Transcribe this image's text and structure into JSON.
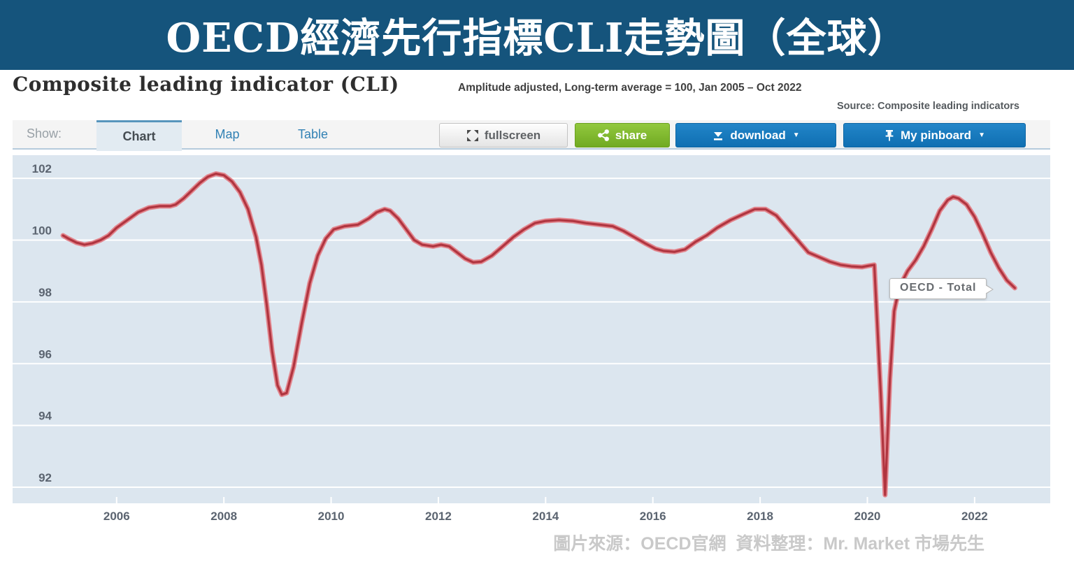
{
  "banner": {
    "title": "OECD經濟先行指標CLI走勢圖（全球）",
    "bg_color": "#15547c"
  },
  "header": {
    "title": "Composite leading indicator (CLI)",
    "subtitle": "Amplitude adjusted, Long-term average = 100, Jan 2005 – Oct 2022",
    "source": "Source: Composite leading indicators"
  },
  "toolbar": {
    "show_label": "Show:",
    "tabs": [
      {
        "label": "Chart",
        "active": true
      },
      {
        "label": "Map",
        "active": false
      },
      {
        "label": "Table",
        "active": false
      }
    ],
    "fullscreen_label": "fullscreen",
    "share_label": "share",
    "download_label": "download",
    "pinboard_label": "My pinboard",
    "share_color": "#76b52a",
    "action_color": "#1478bc"
  },
  "chart_data": {
    "type": "line",
    "title": "Composite leading indicator (CLI)",
    "xlabel": "",
    "ylabel": "",
    "x_ticks": [
      2006,
      2008,
      2010,
      2012,
      2014,
      2016,
      2018,
      2020,
      2022
    ],
    "y_ticks": [
      92,
      94,
      96,
      98,
      100,
      102
    ],
    "xlim": [
      2004.06,
      2023.41
    ],
    "ylim": [
      91.48,
      102.75
    ],
    "grid": "on",
    "plot_bg": "#dce6ef",
    "grid_color": "#ffffff",
    "axis_label_color": "#5b6470",
    "tooltip_label": "OECD - Total",
    "series": [
      {
        "name": "OECD - Total",
        "color": "#b03540",
        "halo_color": "#e2858d",
        "points": [
          [
            2005.0,
            100.15
          ],
          [
            2005.1,
            100.05
          ],
          [
            2005.25,
            99.92
          ],
          [
            2005.4,
            99.85
          ],
          [
            2005.55,
            99.9
          ],
          [
            2005.7,
            100.0
          ],
          [
            2005.85,
            100.15
          ],
          [
            2006.0,
            100.4
          ],
          [
            2006.2,
            100.65
          ],
          [
            2006.4,
            100.9
          ],
          [
            2006.6,
            101.05
          ],
          [
            2006.8,
            101.1
          ],
          [
            2007.0,
            101.1
          ],
          [
            2007.1,
            101.15
          ],
          [
            2007.25,
            101.35
          ],
          [
            2007.4,
            101.6
          ],
          [
            2007.55,
            101.85
          ],
          [
            2007.7,
            102.05
          ],
          [
            2007.85,
            102.15
          ],
          [
            2008.0,
            102.1
          ],
          [
            2008.15,
            101.9
          ],
          [
            2008.3,
            101.55
          ],
          [
            2008.45,
            101.0
          ],
          [
            2008.6,
            100.1
          ],
          [
            2008.7,
            99.2
          ],
          [
            2008.8,
            97.9
          ],
          [
            2008.9,
            96.4
          ],
          [
            2009.0,
            95.3
          ],
          [
            2009.08,
            95.0
          ],
          [
            2009.17,
            95.05
          ],
          [
            2009.3,
            95.9
          ],
          [
            2009.45,
            97.3
          ],
          [
            2009.6,
            98.6
          ],
          [
            2009.75,
            99.5
          ],
          [
            2009.9,
            100.05
          ],
          [
            2010.05,
            100.35
          ],
          [
            2010.25,
            100.45
          ],
          [
            2010.5,
            100.5
          ],
          [
            2010.7,
            100.7
          ],
          [
            2010.85,
            100.9
          ],
          [
            2011.0,
            101.0
          ],
          [
            2011.1,
            100.95
          ],
          [
            2011.25,
            100.7
          ],
          [
            2011.4,
            100.35
          ],
          [
            2011.55,
            100.0
          ],
          [
            2011.7,
            99.85
          ],
          [
            2011.9,
            99.8
          ],
          [
            2012.05,
            99.85
          ],
          [
            2012.2,
            99.8
          ],
          [
            2012.35,
            99.6
          ],
          [
            2012.5,
            99.4
          ],
          [
            2012.65,
            99.28
          ],
          [
            2012.8,
            99.3
          ],
          [
            2013.0,
            99.5
          ],
          [
            2013.2,
            99.8
          ],
          [
            2013.4,
            100.1
          ],
          [
            2013.6,
            100.35
          ],
          [
            2013.8,
            100.55
          ],
          [
            2014.0,
            100.62
          ],
          [
            2014.25,
            100.65
          ],
          [
            2014.5,
            100.62
          ],
          [
            2014.75,
            100.55
          ],
          [
            2015.0,
            100.5
          ],
          [
            2015.25,
            100.45
          ],
          [
            2015.45,
            100.3
          ],
          [
            2015.65,
            100.1
          ],
          [
            2015.85,
            99.9
          ],
          [
            2016.05,
            99.72
          ],
          [
            2016.2,
            99.65
          ],
          [
            2016.4,
            99.62
          ],
          [
            2016.6,
            99.7
          ],
          [
            2016.8,
            99.95
          ],
          [
            2017.0,
            100.15
          ],
          [
            2017.2,
            100.4
          ],
          [
            2017.45,
            100.65
          ],
          [
            2017.7,
            100.85
          ],
          [
            2017.9,
            101.0
          ],
          [
            2018.1,
            101.0
          ],
          [
            2018.3,
            100.8
          ],
          [
            2018.5,
            100.4
          ],
          [
            2018.7,
            100.0
          ],
          [
            2018.9,
            99.6
          ],
          [
            2019.1,
            99.45
          ],
          [
            2019.3,
            99.3
          ],
          [
            2019.5,
            99.2
          ],
          [
            2019.7,
            99.15
          ],
          [
            2019.9,
            99.13
          ],
          [
            2020.05,
            99.18
          ],
          [
            2020.13,
            99.2
          ],
          [
            2020.25,
            95.0
          ],
          [
            2020.33,
            91.75
          ],
          [
            2020.42,
            95.5
          ],
          [
            2020.5,
            97.7
          ],
          [
            2020.6,
            98.5
          ],
          [
            2020.75,
            99.0
          ],
          [
            2020.9,
            99.35
          ],
          [
            2021.05,
            99.8
          ],
          [
            2021.2,
            100.35
          ],
          [
            2021.35,
            100.95
          ],
          [
            2021.5,
            101.3
          ],
          [
            2021.6,
            101.4
          ],
          [
            2021.7,
            101.35
          ],
          [
            2021.85,
            101.15
          ],
          [
            2022.0,
            100.75
          ],
          [
            2022.15,
            100.2
          ],
          [
            2022.3,
            99.6
          ],
          [
            2022.45,
            99.1
          ],
          [
            2022.6,
            98.7
          ],
          [
            2022.75,
            98.45
          ]
        ]
      }
    ]
  },
  "footer": {
    "attribution": "圖片來源：OECD官網  資料整理：Mr. Market 市場先生"
  }
}
